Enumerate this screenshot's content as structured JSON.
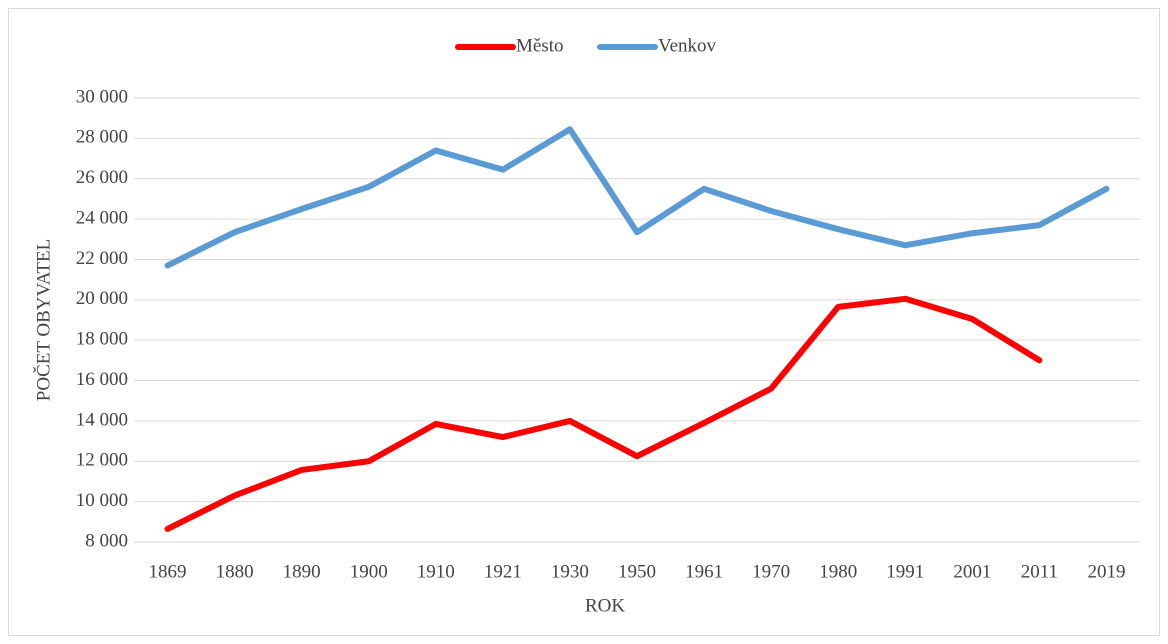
{
  "chart_data": {
    "type": "line",
    "xlabel": "ROK",
    "ylabel": "POČET OBYVATEL",
    "categories": [
      "1869",
      "1880",
      "1890",
      "1900",
      "1910",
      "1921",
      "1930",
      "1950",
      "1961",
      "1970",
      "1980",
      "1991",
      "2001",
      "2011",
      "2019"
    ],
    "series": [
      {
        "name": "Město",
        "color": "#ff0000",
        "values": [
          8650,
          10300,
          11570,
          12000,
          13850,
          13200,
          14000,
          12250,
          13900,
          15600,
          19650,
          20050,
          19050,
          17000,
          null
        ]
      },
      {
        "name": "Venkov",
        "color": "#5b9bd5",
        "values": [
          21700,
          23350,
          24500,
          25600,
          27400,
          26450,
          28450,
          23350,
          25500,
          24400,
          23500,
          22700,
          23300,
          23700,
          25500
        ]
      }
    ],
    "ylim": [
      8000,
      30000
    ],
    "yticks": [
      {
        "value": 8000,
        "label": "8 000"
      },
      {
        "value": 10000,
        "label": "10 000"
      },
      {
        "value": 12000,
        "label": "12 000"
      },
      {
        "value": 14000,
        "label": "14 000"
      },
      {
        "value": 16000,
        "label": "16 000"
      },
      {
        "value": 18000,
        "label": "18 000"
      },
      {
        "value": 20000,
        "label": "20 000"
      },
      {
        "value": 22000,
        "label": "22 000"
      },
      {
        "value": 24000,
        "label": "24 000"
      },
      {
        "value": 26000,
        "label": "26 000"
      },
      {
        "value": 28000,
        "label": "28 000"
      },
      {
        "value": 30000,
        "label": "30 000"
      }
    ],
    "grid": true,
    "legend": "top"
  }
}
